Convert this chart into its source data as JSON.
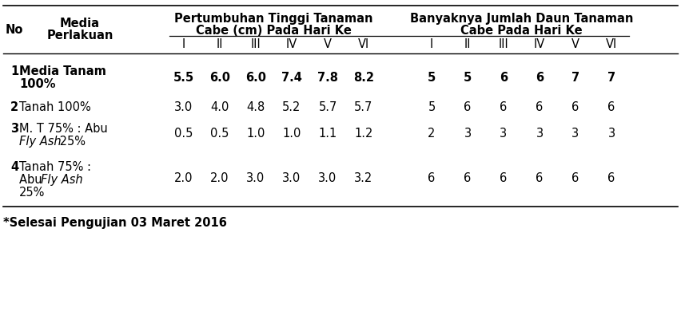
{
  "footer": "*Selesai Pengujian 03 Maret 2016",
  "col_labels_roman": [
    "I",
    "II",
    "III",
    "IV",
    "V",
    "VI"
  ],
  "header1_left": "No",
  "header1_media": "Media",
  "header1_perlakuan": "Perlakuan",
  "header1_pertumbuhan": "Pertumbuhan Tinggi Tanaman",
  "header1_cabe_cm": "Cabe (cm) Pada Hari Ke",
  "header1_banyaknya": "Banyaknya Jumlah Daun Tanaman",
  "header1_cabe": "Cabe Pada Hari Ke",
  "rows": [
    {
      "no": "1",
      "media_line1": "Media Tanam",
      "media_line2": "100%",
      "media_italic": false,
      "tinggi": [
        "5.5",
        "6.0",
        "6.0",
        "7.4",
        "7.8",
        "8.2"
      ],
      "daun": [
        "5",
        "5",
        "6",
        "6",
        "7",
        "7"
      ],
      "bold": true
    },
    {
      "no": "2",
      "media_line1": "Tanah 100%",
      "media_line2": "",
      "media_italic": false,
      "tinggi": [
        "3.0",
        "4.0",
        "4.8",
        "5.2",
        "5.7",
        "5.7"
      ],
      "daun": [
        "5",
        "6",
        "6",
        "6",
        "6",
        "6"
      ],
      "bold": false
    },
    {
      "no": "3",
      "media_line1": "M. T 75% : Abu",
      "media_line2_plain": "",
      "media_line2_italic": "Fly Ash",
      "media_line2_suffix": " 25%",
      "media_italic": true,
      "tinggi": [
        "0.5",
        "0.5",
        "1.0",
        "1.0",
        "1.1",
        "1.2"
      ],
      "daun": [
        "2",
        "3",
        "3",
        "3",
        "3",
        "3"
      ],
      "bold": false
    },
    {
      "no": "4",
      "media_line1": "Tanah 75% :",
      "media_line2_plain": "Abu ",
      "media_line2_italic": "Fly Ash",
      "media_line3": "25%",
      "media_italic": true,
      "tinggi": [
        "2.0",
        "2.0",
        "3.0",
        "3.0",
        "3.0",
        "3.2"
      ],
      "daun": [
        "6",
        "6",
        "6",
        "6",
        "6",
        "6"
      ],
      "bold": false
    }
  ],
  "font_size": 10.5,
  "font_size_header": 10.5,
  "line_color": "black",
  "bg_color": "white"
}
